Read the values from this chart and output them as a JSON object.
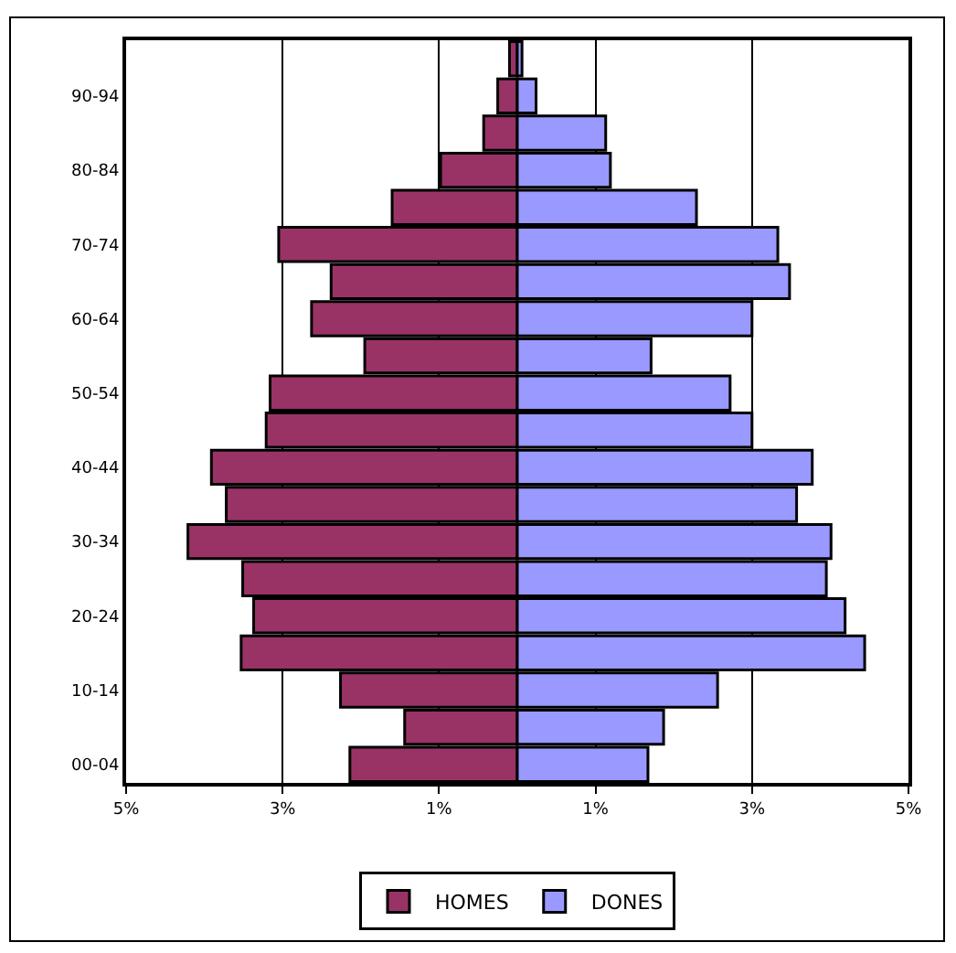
{
  "chart_data": {
    "type": "bar",
    "orientation": "horizontal",
    "categories": [
      null,
      "90-94",
      null,
      "80-84",
      null,
      "70-74",
      null,
      "60-64",
      null,
      "50-54",
      null,
      "40-44",
      null,
      "30-34",
      null,
      "20-24",
      null,
      "10-14",
      null,
      "00-04"
    ],
    "series": [
      {
        "name": "HOMES",
        "color": "#993366",
        "values": [
          -0.1,
          -0.25,
          -0.43,
          -0.98,
          -1.6,
          -3.05,
          -2.38,
          -2.63,
          -1.95,
          -3.16,
          -3.21,
          -3.91,
          -3.72,
          -4.21,
          -3.51,
          -3.37,
          -3.53,
          -2.26,
          -1.44,
          -2.14
        ]
      },
      {
        "name": "DONES",
        "color": "#9999ff",
        "values": [
          0.06,
          0.24,
          1.13,
          1.19,
          2.29,
          3.33,
          3.48,
          3.0,
          1.71,
          2.72,
          3.0,
          3.77,
          3.57,
          4.01,
          3.95,
          4.19,
          4.44,
          2.56,
          1.87,
          1.67
        ]
      }
    ],
    "xlim": [
      -5,
      5
    ],
    "xticks": [
      {
        "value": -5,
        "label": "5%"
      },
      {
        "value": -3,
        "label": "3%"
      },
      {
        "value": -1,
        "label": "1%"
      },
      {
        "value": 1,
        "label": "1%"
      },
      {
        "value": 3,
        "label": "3%"
      },
      {
        "value": 5,
        "label": "5%"
      }
    ],
    "stacked": true,
    "grid": "x",
    "legend": "bottom"
  }
}
